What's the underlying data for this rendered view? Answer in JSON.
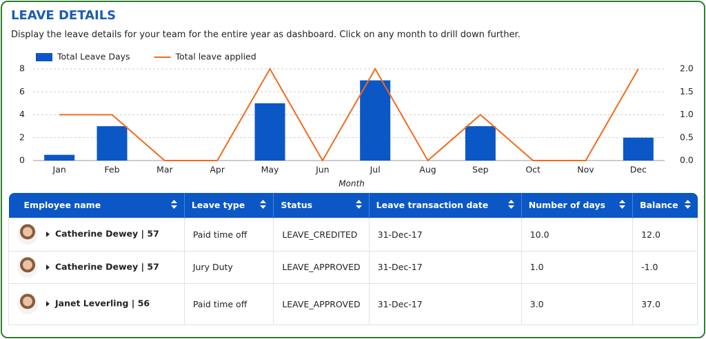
{
  "header": {
    "title": "LEAVE DETAILS",
    "description": "Display the leave details for your team for the entire year as dashboard. Click on any month to drill down further."
  },
  "chart_data": {
    "type": "bar_line",
    "x_label": "Month",
    "categories": [
      "Jan",
      "Feb",
      "Mar",
      "Apr",
      "May",
      "Jun",
      "Jul",
      "Aug",
      "Sep",
      "Oct",
      "Nov",
      "Dec"
    ],
    "series": [
      {
        "name": "Total Leave Days",
        "type": "bar",
        "color": "#0b57c5",
        "values": [
          0.5,
          3,
          0,
          0,
          5,
          0,
          7,
          0,
          3,
          0,
          0,
          2
        ]
      },
      {
        "name": "Total leave applied",
        "type": "line",
        "color": "#f26a1b",
        "axis": "y2",
        "values": [
          1,
          1,
          0,
          0,
          2,
          0,
          2,
          0,
          1,
          0,
          0,
          2
        ]
      }
    ],
    "ylim": [
      0,
      8
    ],
    "yticks": [
      0,
      2,
      4,
      6,
      8
    ],
    "y2lim": [
      0,
      2
    ],
    "y2ticks": [
      {
        "value": 0,
        "label": "0.0"
      },
      {
        "value": 0.5,
        "label": "0.5"
      },
      {
        "value": 1,
        "label": "1.0"
      },
      {
        "value": 1.5,
        "label": "1.5"
      },
      {
        "value": 2,
        "label": "2.0"
      }
    ],
    "grid": true,
    "legend": "top-left"
  },
  "table": {
    "columns": [
      "Employee name",
      "Leave type",
      "Status",
      "Leave transaction date",
      "Number of days",
      "Balance"
    ],
    "rows": [
      [
        "Catherine Dewey | 57",
        "Paid time off",
        "LEAVE_CREDITED",
        "31-Dec-17",
        "10.0",
        "12.0"
      ],
      [
        "Catherine Dewey | 57",
        "Jury Duty",
        "LEAVE_APPROVED",
        "31-Dec-17",
        "1.0",
        "-1.0"
      ],
      [
        "Janet Leverling | 56",
        "Paid time off",
        "LEAVE_APPROVED",
        "31-Dec-17",
        "3.0",
        "37.0"
      ]
    ]
  }
}
